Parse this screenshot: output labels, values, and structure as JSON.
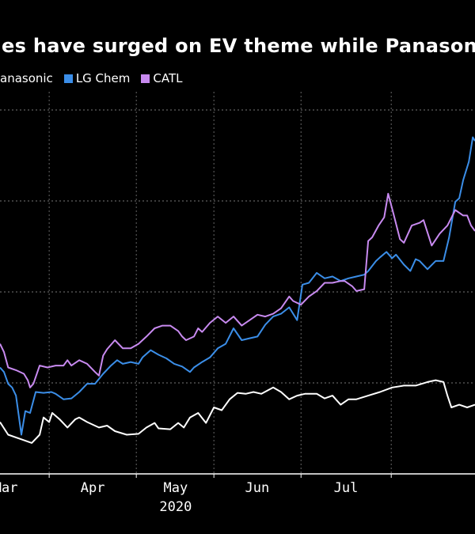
{
  "chart_data": {
    "type": "line",
    "title": "es have surged on EV theme while Panason",
    "xlabel": "2020",
    "ylabel": "",
    "x_units": "days relative to Apr 1, 2020",
    "xlim": [
      -17.5,
      151.5
    ],
    "ylim": [
      0,
      4.2
    ],
    "grid": true,
    "gridlines_y": [
      1,
      2,
      3,
      4
    ],
    "month_boundaries": [
      0,
      31,
      58.6,
      89.6,
      121.7
    ],
    "month_labels": [
      {
        "label": "Mar",
        "x": -15.5
      },
      {
        "label": "Apr",
        "x": 15.5
      },
      {
        "label": "May",
        "x": 45
      },
      {
        "label": "Jun",
        "x": 74
      },
      {
        "label": "Jul",
        "x": 105.6
      }
    ],
    "year_label": "2020",
    "legend_placement": "top-left",
    "series": [
      {
        "name": "anasonic",
        "color": "#ffffff",
        "points": [
          [
            -17.5,
            0.57
          ],
          [
            -14.6,
            0.43
          ],
          [
            -9.9,
            0.38
          ],
          [
            -6.2,
            0.34
          ],
          [
            -3.4,
            0.43
          ],
          [
            -2,
            0.62
          ],
          [
            0,
            0.57
          ],
          [
            1.1,
            0.67
          ],
          [
            3.7,
            0.6
          ],
          [
            6.5,
            0.51
          ],
          [
            9.3,
            0.6
          ],
          [
            10.7,
            0.62
          ],
          [
            13.5,
            0.57
          ],
          [
            17.7,
            0.51
          ],
          [
            20.6,
            0.53
          ],
          [
            23.4,
            0.47
          ],
          [
            27.6,
            0.43
          ],
          [
            31.8,
            0.44
          ],
          [
            34.6,
            0.51
          ],
          [
            37.5,
            0.56
          ],
          [
            38.9,
            0.5
          ],
          [
            43.1,
            0.49
          ],
          [
            45.9,
            0.56
          ],
          [
            47.9,
            0.51
          ],
          [
            50.1,
            0.62
          ],
          [
            53,
            0.67
          ],
          [
            55.8,
            0.56
          ],
          [
            58.6,
            0.73
          ],
          [
            61.4,
            0.7
          ],
          [
            64.2,
            0.82
          ],
          [
            67,
            0.89
          ],
          [
            69.9,
            0.88
          ],
          [
            72.7,
            0.9
          ],
          [
            75.5,
            0.88
          ],
          [
            79.7,
            0.95
          ],
          [
            82.5,
            0.9
          ],
          [
            85.4,
            0.82
          ],
          [
            88.2,
            0.86
          ],
          [
            91,
            0.88
          ],
          [
            95.2,
            0.88
          ],
          [
            98,
            0.83
          ],
          [
            100.8,
            0.86
          ],
          [
            103.7,
            0.76
          ],
          [
            106.5,
            0.82
          ],
          [
            109.3,
            0.82
          ],
          [
            113.5,
            0.86
          ],
          [
            117.7,
            0.9
          ],
          [
            122,
            0.95
          ],
          [
            126.2,
            0.97
          ],
          [
            130.4,
            0.97
          ],
          [
            134.6,
            1.01
          ],
          [
            137.5,
            1.03
          ],
          [
            140.3,
            1.01
          ],
          [
            141.7,
            0.86
          ],
          [
            143.1,
            0.73
          ],
          [
            145.9,
            0.76
          ],
          [
            148.7,
            0.73
          ],
          [
            151.5,
            0.76
          ]
        ]
      },
      {
        "name": "LG Chem",
        "color": "#3b8ee8",
        "points": [
          [
            -17.5,
            1.17
          ],
          [
            -16.1,
            1.12
          ],
          [
            -14.6,
            0.99
          ],
          [
            -13.2,
            0.95
          ],
          [
            -11.8,
            0.86
          ],
          [
            -9.9,
            0.43
          ],
          [
            -8.5,
            0.69
          ],
          [
            -6.8,
            0.67
          ],
          [
            -4.8,
            0.9
          ],
          [
            -2,
            0.89
          ],
          [
            0.8,
            0.9
          ],
          [
            2.3,
            0.88
          ],
          [
            5.1,
            0.82
          ],
          [
            7.9,
            0.83
          ],
          [
            10.7,
            0.9
          ],
          [
            13.5,
            0.99
          ],
          [
            16.3,
            0.99
          ],
          [
            19.2,
            1.1
          ],
          [
            22,
            1.19
          ],
          [
            24.2,
            1.25
          ],
          [
            26.2,
            1.21
          ],
          [
            29,
            1.23
          ],
          [
            31.8,
            1.21
          ],
          [
            33.2,
            1.28
          ],
          [
            36.1,
            1.36
          ],
          [
            38.9,
            1.31
          ],
          [
            41.7,
            1.27
          ],
          [
            44.5,
            1.21
          ],
          [
            47.3,
            1.18
          ],
          [
            50.1,
            1.12
          ],
          [
            51.5,
            1.17
          ],
          [
            54.4,
            1.23
          ],
          [
            57.2,
            1.28
          ],
          [
            60,
            1.38
          ],
          [
            62.8,
            1.43
          ],
          [
            65.6,
            1.6
          ],
          [
            68.5,
            1.47
          ],
          [
            71.3,
            1.49
          ],
          [
            74.1,
            1.51
          ],
          [
            76.9,
            1.64
          ],
          [
            79.7,
            1.73
          ],
          [
            82.5,
            1.76
          ],
          [
            85.4,
            1.83
          ],
          [
            88.2,
            1.69
          ],
          [
            90.1,
            2.08
          ],
          [
            92.4,
            2.1
          ],
          [
            95.2,
            2.21
          ],
          [
            98,
            2.15
          ],
          [
            100.8,
            2.17
          ],
          [
            103.7,
            2.12
          ],
          [
            106.5,
            2.15
          ],
          [
            109.3,
            2.17
          ],
          [
            112.1,
            2.19
          ],
          [
            113.5,
            2.23
          ],
          [
            116.3,
            2.34
          ],
          [
            117.7,
            2.38
          ],
          [
            120,
            2.44
          ],
          [
            122,
            2.37
          ],
          [
            123.4,
            2.41
          ],
          [
            126.2,
            2.3
          ],
          [
            128.5,
            2.23
          ],
          [
            130.4,
            2.36
          ],
          [
            131.8,
            2.34
          ],
          [
            134.6,
            2.25
          ],
          [
            137.5,
            2.34
          ],
          [
            140.3,
            2.34
          ],
          [
            142.3,
            2.6
          ],
          [
            144.5,
            2.99
          ],
          [
            145.9,
            3.03
          ],
          [
            147.3,
            3.23
          ],
          [
            149.3,
            3.43
          ],
          [
            150.7,
            3.7
          ],
          [
            151.5,
            3.66
          ]
        ]
      },
      {
        "name": "CATL",
        "color": "#c88af0",
        "points": [
          [
            -17.5,
            1.43
          ],
          [
            -16.1,
            1.34
          ],
          [
            -14.6,
            1.17
          ],
          [
            -11.8,
            1.14
          ],
          [
            -9,
            1.1
          ],
          [
            -7.6,
            1.03
          ],
          [
            -6.8,
            0.95
          ],
          [
            -5.6,
            0.99
          ],
          [
            -3.4,
            1.19
          ],
          [
            -0.6,
            1.17
          ],
          [
            2.3,
            1.19
          ],
          [
            5.1,
            1.19
          ],
          [
            6.5,
            1.25
          ],
          [
            7.9,
            1.19
          ],
          [
            10.7,
            1.25
          ],
          [
            13.5,
            1.21
          ],
          [
            16.3,
            1.12
          ],
          [
            17.7,
            1.08
          ],
          [
            19.2,
            1.3
          ],
          [
            20.6,
            1.37
          ],
          [
            23.4,
            1.47
          ],
          [
            26.2,
            1.38
          ],
          [
            29,
            1.38
          ],
          [
            31.8,
            1.43
          ],
          [
            34.6,
            1.51
          ],
          [
            37.5,
            1.6
          ],
          [
            40.3,
            1.63
          ],
          [
            43.1,
            1.63
          ],
          [
            45.9,
            1.57
          ],
          [
            47.3,
            1.51
          ],
          [
            48.7,
            1.47
          ],
          [
            51.5,
            1.51
          ],
          [
            53,
            1.6
          ],
          [
            54.4,
            1.56
          ],
          [
            57.2,
            1.66
          ],
          [
            60,
            1.73
          ],
          [
            62.8,
            1.66
          ],
          [
            65.6,
            1.73
          ],
          [
            68.5,
            1.63
          ],
          [
            71.3,
            1.69
          ],
          [
            74.1,
            1.75
          ],
          [
            76.9,
            1.73
          ],
          [
            79.7,
            1.76
          ],
          [
            82.5,
            1.82
          ],
          [
            85.4,
            1.95
          ],
          [
            86.8,
            1.9
          ],
          [
            89.6,
            1.86
          ],
          [
            92.4,
            1.95
          ],
          [
            95.2,
            2.01
          ],
          [
            98,
            2.1
          ],
          [
            100.8,
            2.1
          ],
          [
            103.7,
            2.12
          ],
          [
            105.1,
            2.12
          ],
          [
            107.9,
            2.06
          ],
          [
            109.3,
            2.01
          ],
          [
            112.1,
            2.03
          ],
          [
            113.5,
            2.56
          ],
          [
            114.9,
            2.6
          ],
          [
            117.2,
            2.73
          ],
          [
            119.2,
            2.82
          ],
          [
            120.6,
            3.08
          ],
          [
            122.5,
            2.86
          ],
          [
            124.8,
            2.58
          ],
          [
            126.2,
            2.54
          ],
          [
            129,
            2.73
          ],
          [
            131.8,
            2.76
          ],
          [
            133.2,
            2.79
          ],
          [
            136.1,
            2.51
          ],
          [
            138.9,
            2.64
          ],
          [
            141.7,
            2.73
          ],
          [
            144.5,
            2.9
          ],
          [
            147.3,
            2.84
          ],
          [
            148.7,
            2.84
          ],
          [
            150.1,
            2.73
          ],
          [
            151.5,
            2.67
          ]
        ]
      }
    ]
  }
}
